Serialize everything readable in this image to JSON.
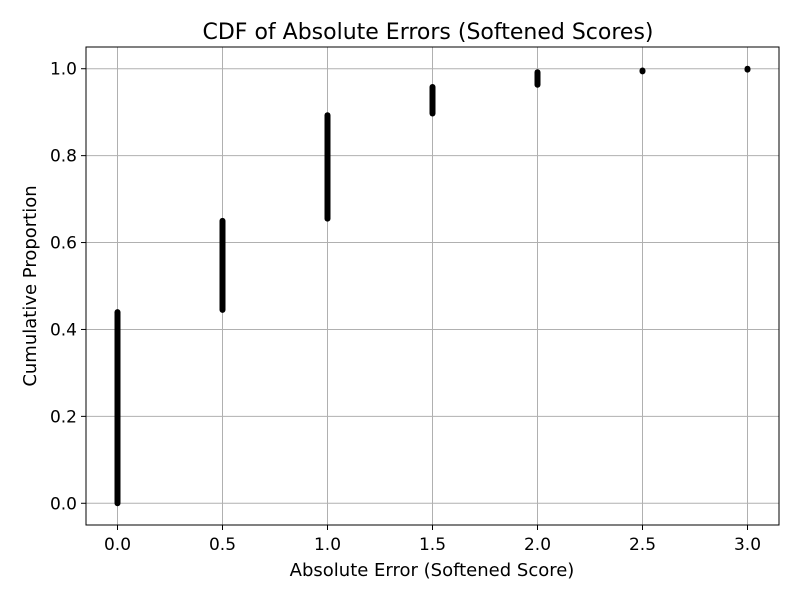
{
  "chart_data": {
    "type": "scatter",
    "title": "CDF of Absolute Errors (Softened Scores)",
    "xlabel": "Absolute Error (Softened Score)",
    "ylabel": "Cumulative Proportion",
    "xlim": [
      -0.15,
      3.15
    ],
    "ylim": [
      -0.05,
      1.05
    ],
    "xticks": [
      0.0,
      0.5,
      1.0,
      1.5,
      2.0,
      2.5,
      3.0
    ],
    "xtick_labels": [
      "0.0",
      "0.5",
      "1.0",
      "1.5",
      "2.0",
      "2.5",
      "3.0"
    ],
    "yticks": [
      0.0,
      0.2,
      0.4,
      0.6,
      0.8,
      1.0
    ],
    "ytick_labels": [
      "0.0",
      "0.2",
      "0.4",
      "0.6",
      "0.8",
      "1.0"
    ],
    "grid": true,
    "marker_color": "#000000",
    "grid_color": "#b0b0b0",
    "series": [
      {
        "segments": [
          {
            "x": 0.0,
            "y_start": 0.0,
            "y_end": 0.44
          },
          {
            "x": 0.5,
            "y_start": 0.445,
            "y_end": 0.65
          },
          {
            "x": 1.0,
            "y_start": 0.655,
            "y_end": 0.893
          },
          {
            "x": 1.5,
            "y_start": 0.897,
            "y_end": 0.958
          },
          {
            "x": 2.0,
            "y_start": 0.963,
            "y_end": 0.992
          },
          {
            "x": 2.5,
            "y_start": 0.994,
            "y_end": 0.996
          },
          {
            "x": 3.0,
            "y_start": 0.998,
            "y_end": 1.0
          }
        ]
      }
    ]
  }
}
